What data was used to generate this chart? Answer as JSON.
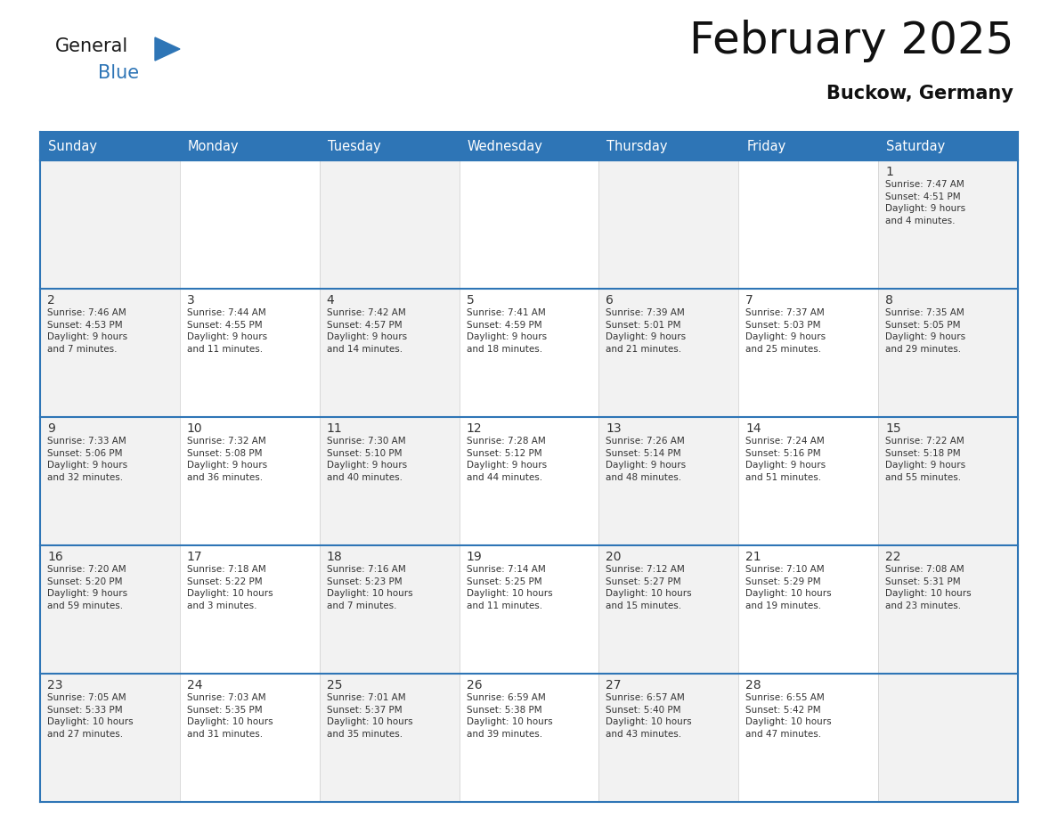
{
  "title": "February 2025",
  "subtitle": "Buckow, Germany",
  "header_bg_color": "#2E75B6",
  "header_text_color": "#FFFFFF",
  "cell_bg_light": "#F2F2F2",
  "cell_bg_white": "#FFFFFF",
  "cell_border_color": "#2E75B6",
  "cell_line_color": "#CCCCCC",
  "text_color": "#333333",
  "days_of_week": [
    "Sunday",
    "Monday",
    "Tuesday",
    "Wednesday",
    "Thursday",
    "Friday",
    "Saturday"
  ],
  "calendar": [
    [
      {
        "day": null,
        "info": null
      },
      {
        "day": null,
        "info": null
      },
      {
        "day": null,
        "info": null
      },
      {
        "day": null,
        "info": null
      },
      {
        "day": null,
        "info": null
      },
      {
        "day": null,
        "info": null
      },
      {
        "day": 1,
        "info": "Sunrise: 7:47 AM\nSunset: 4:51 PM\nDaylight: 9 hours\nand 4 minutes."
      }
    ],
    [
      {
        "day": 2,
        "info": "Sunrise: 7:46 AM\nSunset: 4:53 PM\nDaylight: 9 hours\nand 7 minutes."
      },
      {
        "day": 3,
        "info": "Sunrise: 7:44 AM\nSunset: 4:55 PM\nDaylight: 9 hours\nand 11 minutes."
      },
      {
        "day": 4,
        "info": "Sunrise: 7:42 AM\nSunset: 4:57 PM\nDaylight: 9 hours\nand 14 minutes."
      },
      {
        "day": 5,
        "info": "Sunrise: 7:41 AM\nSunset: 4:59 PM\nDaylight: 9 hours\nand 18 minutes."
      },
      {
        "day": 6,
        "info": "Sunrise: 7:39 AM\nSunset: 5:01 PM\nDaylight: 9 hours\nand 21 minutes."
      },
      {
        "day": 7,
        "info": "Sunrise: 7:37 AM\nSunset: 5:03 PM\nDaylight: 9 hours\nand 25 minutes."
      },
      {
        "day": 8,
        "info": "Sunrise: 7:35 AM\nSunset: 5:05 PM\nDaylight: 9 hours\nand 29 minutes."
      }
    ],
    [
      {
        "day": 9,
        "info": "Sunrise: 7:33 AM\nSunset: 5:06 PM\nDaylight: 9 hours\nand 32 minutes."
      },
      {
        "day": 10,
        "info": "Sunrise: 7:32 AM\nSunset: 5:08 PM\nDaylight: 9 hours\nand 36 minutes."
      },
      {
        "day": 11,
        "info": "Sunrise: 7:30 AM\nSunset: 5:10 PM\nDaylight: 9 hours\nand 40 minutes."
      },
      {
        "day": 12,
        "info": "Sunrise: 7:28 AM\nSunset: 5:12 PM\nDaylight: 9 hours\nand 44 minutes."
      },
      {
        "day": 13,
        "info": "Sunrise: 7:26 AM\nSunset: 5:14 PM\nDaylight: 9 hours\nand 48 minutes."
      },
      {
        "day": 14,
        "info": "Sunrise: 7:24 AM\nSunset: 5:16 PM\nDaylight: 9 hours\nand 51 minutes."
      },
      {
        "day": 15,
        "info": "Sunrise: 7:22 AM\nSunset: 5:18 PM\nDaylight: 9 hours\nand 55 minutes."
      }
    ],
    [
      {
        "day": 16,
        "info": "Sunrise: 7:20 AM\nSunset: 5:20 PM\nDaylight: 9 hours\nand 59 minutes."
      },
      {
        "day": 17,
        "info": "Sunrise: 7:18 AM\nSunset: 5:22 PM\nDaylight: 10 hours\nand 3 minutes."
      },
      {
        "day": 18,
        "info": "Sunrise: 7:16 AM\nSunset: 5:23 PM\nDaylight: 10 hours\nand 7 minutes."
      },
      {
        "day": 19,
        "info": "Sunrise: 7:14 AM\nSunset: 5:25 PM\nDaylight: 10 hours\nand 11 minutes."
      },
      {
        "day": 20,
        "info": "Sunrise: 7:12 AM\nSunset: 5:27 PM\nDaylight: 10 hours\nand 15 minutes."
      },
      {
        "day": 21,
        "info": "Sunrise: 7:10 AM\nSunset: 5:29 PM\nDaylight: 10 hours\nand 19 minutes."
      },
      {
        "day": 22,
        "info": "Sunrise: 7:08 AM\nSunset: 5:31 PM\nDaylight: 10 hours\nand 23 minutes."
      }
    ],
    [
      {
        "day": 23,
        "info": "Sunrise: 7:05 AM\nSunset: 5:33 PM\nDaylight: 10 hours\nand 27 minutes."
      },
      {
        "day": 24,
        "info": "Sunrise: 7:03 AM\nSunset: 5:35 PM\nDaylight: 10 hours\nand 31 minutes."
      },
      {
        "day": 25,
        "info": "Sunrise: 7:01 AM\nSunset: 5:37 PM\nDaylight: 10 hours\nand 35 minutes."
      },
      {
        "day": 26,
        "info": "Sunrise: 6:59 AM\nSunset: 5:38 PM\nDaylight: 10 hours\nand 39 minutes."
      },
      {
        "day": 27,
        "info": "Sunrise: 6:57 AM\nSunset: 5:40 PM\nDaylight: 10 hours\nand 43 minutes."
      },
      {
        "day": 28,
        "info": "Sunrise: 6:55 AM\nSunset: 5:42 PM\nDaylight: 10 hours\nand 47 minutes."
      },
      {
        "day": null,
        "info": null
      }
    ]
  ],
  "logo_color_general": "#1a1a1a",
  "logo_color_blue": "#2E75B6",
  "logo_triangle_color": "#2E75B6",
  "title_fontsize": 36,
  "subtitle_fontsize": 15,
  "header_fontsize": 10.5,
  "day_num_fontsize": 10,
  "info_fontsize": 7.5
}
